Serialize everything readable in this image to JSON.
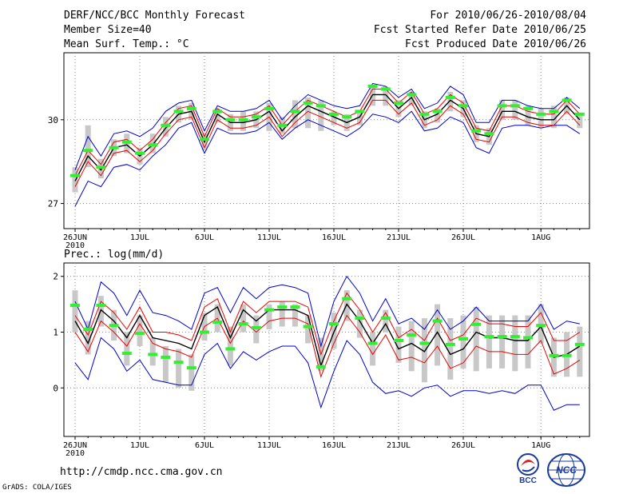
{
  "header": {
    "left": [
      "DERF/NCC/BCC Monthly Forecast",
      "Member Size=40",
      "Mean Surf. Temp.: °C"
    ],
    "right": [
      "For 2010/06/26-2010/08/04",
      "Fcst Started Refer Date 2010/06/25",
      "Fcst Produced Date 2010/06/26"
    ]
  },
  "footer": {
    "url": "http://cmdp.ncc.cma.gov.cn",
    "credit": "GrADS: COLA/IGES",
    "logo_bcc": "BCC",
    "logo_ncc": "NCC"
  },
  "colors": {
    "ensemble_mean": "#000000",
    "spread_inner": "#ee0000",
    "spread_outer": "#0000cc",
    "box": "#c8c8c8",
    "marker": "#33ee33",
    "grid": "#888888"
  },
  "chart_data": [
    {
      "type": "line",
      "title": "Mean Surf. Temp.: °C",
      "x_tick_labels": [
        "26JUN",
        "1JUL",
        "6JUL",
        "11JUL",
        "16JUL",
        "21JUL",
        "26JUL",
        "1AUG"
      ],
      "x_tick_days": [
        0,
        5,
        10,
        15,
        20,
        25,
        30,
        36
      ],
      "x_sublabel": "2010",
      "y_ticks": [
        27,
        30
      ],
      "ylim": [
        26.1,
        32.4
      ],
      "mean": [
        27.8,
        28.7,
        28.2,
        29.0,
        29.1,
        28.7,
        29.1,
        29.7,
        30.2,
        30.3,
        29.2,
        30.2,
        29.9,
        29.9,
        30.0,
        30.3,
        29.6,
        30.1,
        30.5,
        30.3,
        30.1,
        29.9,
        30.1,
        30.9,
        30.9,
        30.4,
        30.8,
        30.0,
        30.2,
        30.7,
        30.4,
        29.5,
        29.4,
        30.3,
        30.3,
        30.1,
        30.0,
        30.0,
        30.5,
        30.0
      ],
      "inner_low": [
        27.6,
        28.5,
        28.0,
        28.8,
        28.9,
        28.5,
        28.9,
        29.5,
        30.0,
        30.1,
        29.0,
        30.0,
        29.7,
        29.7,
        29.8,
        30.1,
        29.4,
        29.9,
        30.3,
        30.1,
        29.9,
        29.7,
        29.9,
        30.7,
        30.7,
        30.2,
        30.6,
        29.8,
        30.0,
        30.5,
        30.2,
        29.3,
        29.2,
        30.1,
        30.1,
        29.9,
        29.8,
        29.8,
        30.3,
        29.8
      ],
      "inner_high": [
        28.0,
        28.9,
        28.4,
        29.2,
        29.3,
        28.9,
        29.3,
        29.9,
        30.4,
        30.5,
        29.4,
        30.4,
        30.1,
        30.1,
        30.2,
        30.5,
        29.8,
        30.3,
        30.7,
        30.5,
        30.3,
        30.1,
        30.3,
        31.1,
        31.1,
        30.6,
        31.0,
        30.2,
        30.4,
        30.9,
        30.6,
        29.7,
        29.6,
        30.5,
        30.5,
        30.3,
        30.2,
        30.2,
        30.7,
        30.2
      ],
      "outer_low": [
        26.9,
        27.8,
        27.6,
        28.3,
        28.4,
        28.2,
        28.7,
        29.1,
        29.7,
        29.9,
        28.8,
        29.7,
        29.5,
        29.5,
        29.6,
        29.9,
        29.3,
        29.7,
        30.0,
        29.8,
        29.6,
        29.4,
        29.7,
        30.2,
        30.1,
        29.9,
        30.3,
        29.6,
        29.7,
        30.1,
        29.9,
        29.0,
        28.8,
        29.7,
        29.8,
        29.8,
        29.7,
        29.8,
        29.8,
        29.5
      ],
      "outer_high": [
        28.2,
        29.4,
        28.7,
        29.5,
        29.6,
        29.4,
        29.7,
        30.3,
        30.6,
        30.7,
        29.6,
        30.5,
        30.3,
        30.3,
        30.4,
        30.7,
        30.0,
        30.5,
        30.9,
        30.7,
        30.5,
        30.4,
        30.5,
        31.3,
        31.2,
        30.8,
        31.1,
        30.4,
        30.6,
        31.2,
        30.9,
        29.9,
        29.9,
        30.7,
        30.7,
        30.5,
        30.4,
        30.4,
        30.8,
        30.4
      ],
      "box_low": [
        27.4,
        28.3,
        27.9,
        28.7,
        28.8,
        28.4,
        28.8,
        29.4,
        29.9,
        30.0,
        28.9,
        29.9,
        29.6,
        29.6,
        29.7,
        29.6,
        29.5,
        29.7,
        29.7,
        29.6,
        29.8,
        29.6,
        29.8,
        30.5,
        30.5,
        30.1,
        30.5,
        29.7,
        29.9,
        30.3,
        30.1,
        29.2,
        29.1,
        30.0,
        30.0,
        29.8,
        29.7,
        29.7,
        30.2,
        29.7
      ],
      "box_high": [
        28.3,
        29.8,
        28.6,
        29.3,
        29.5,
        29.0,
        29.5,
        30.1,
        30.5,
        30.6,
        29.5,
        30.4,
        30.2,
        30.3,
        30.3,
        30.6,
        30.1,
        30.7,
        30.8,
        30.7,
        30.3,
        30.2,
        30.3,
        31.2,
        31.2,
        30.7,
        31.0,
        30.3,
        30.4,
        31.0,
        30.7,
        29.8,
        29.7,
        30.7,
        30.7,
        30.5,
        30.4,
        30.5,
        30.8,
        30.2
      ],
      "marker": [
        28.0,
        28.9,
        28.3,
        29.0,
        29.2,
        28.8,
        29.1,
        29.8,
        30.3,
        30.4,
        29.3,
        30.3,
        30.0,
        30.0,
        30.1,
        30.4,
        29.8,
        30.3,
        30.6,
        30.5,
        30.2,
        30.1,
        30.3,
        31.2,
        31.1,
        30.6,
        30.9,
        30.2,
        30.3,
        30.8,
        30.5,
        29.6,
        29.5,
        30.5,
        30.5,
        30.4,
        30.2,
        30.3,
        30.7,
        30.2
      ]
    },
    {
      "type": "line",
      "title": "Prec.: log(mm/d)",
      "x_tick_labels": [
        "26JUN",
        "1JUL",
        "6JUL",
        "11JUL",
        "16JUL",
        "21JUL",
        "26JUL",
        "1AUG"
      ],
      "x_tick_days": [
        0,
        5,
        10,
        15,
        20,
        25,
        30,
        36
      ],
      "x_sublabel": "2010",
      "y_ticks": [
        0,
        1,
        2
      ],
      "ylim": [
        -0.87,
        2.24
      ],
      "mean": [
        1.2,
        0.8,
        1.4,
        1.2,
        0.9,
        1.3,
        0.9,
        0.85,
        0.8,
        0.7,
        1.3,
        1.45,
        0.9,
        1.4,
        1.2,
        1.4,
        1.4,
        1.4,
        1.3,
        0.4,
        1.0,
        1.5,
        1.2,
        0.8,
        1.15,
        0.7,
        0.8,
        0.65,
        1.0,
        0.6,
        0.7,
        1.0,
        0.9,
        0.9,
        0.85,
        0.85,
        1.1,
        0.55,
        0.6,
        0.75
      ],
      "inner_low": [
        1.0,
        0.65,
        1.2,
        1.0,
        0.75,
        1.15,
        0.8,
        0.7,
        0.65,
        0.55,
        1.1,
        1.25,
        0.8,
        1.2,
        1.0,
        1.2,
        1.25,
        1.25,
        1.15,
        0.2,
        0.8,
        1.3,
        1.0,
        0.6,
        0.95,
        0.5,
        0.55,
        0.45,
        0.75,
        0.35,
        0.45,
        0.75,
        0.65,
        0.65,
        0.6,
        0.6,
        0.85,
        0.25,
        0.35,
        0.5
      ],
      "inner_high": [
        1.3,
        0.95,
        1.55,
        1.35,
        1.05,
        1.45,
        1.0,
        1.0,
        0.95,
        0.85,
        1.45,
        1.6,
        1.0,
        1.55,
        1.35,
        1.55,
        1.55,
        1.55,
        1.45,
        0.6,
        1.2,
        1.7,
        1.4,
        1.0,
        1.35,
        0.9,
        1.05,
        0.85,
        1.25,
        0.85,
        0.95,
        1.25,
        1.15,
        1.15,
        1.1,
        1.1,
        1.35,
        0.85,
        0.85,
        1.0
      ],
      "outer_low": [
        0.45,
        0.15,
        0.9,
        0.7,
        0.3,
        0.5,
        0.15,
        0.1,
        0.05,
        0.05,
        0.6,
        0.8,
        0.35,
        0.65,
        0.5,
        0.65,
        0.75,
        0.75,
        0.45,
        -0.35,
        0.3,
        0.85,
        0.6,
        0.1,
        -0.1,
        -0.05,
        -0.15,
        0.0,
        0.05,
        -0.15,
        -0.05,
        -0.05,
        -0.1,
        -0.05,
        -0.1,
        0.05,
        0.05,
        -0.4,
        -0.3,
        -0.3
      ],
      "outer_high": [
        1.55,
        1.05,
        1.9,
        1.7,
        1.3,
        1.75,
        1.35,
        1.3,
        1.2,
        1.05,
        1.7,
        1.8,
        1.35,
        1.8,
        1.6,
        1.8,
        1.85,
        1.8,
        1.7,
        0.75,
        1.55,
        2.0,
        1.7,
        1.2,
        1.6,
        1.15,
        1.25,
        1.05,
        1.4,
        1.05,
        1.2,
        1.45,
        1.2,
        1.2,
        1.2,
        1.2,
        1.5,
        1.05,
        1.2,
        1.15
      ],
      "box_low": [
        1.0,
        0.6,
        1.1,
        0.85,
        0.4,
        0.75,
        0.4,
        0.1,
        0.0,
        -0.05,
        0.85,
        1.0,
        0.4,
        1.0,
        0.8,
        1.05,
        1.1,
        1.1,
        0.8,
        0.3,
        0.7,
        1.2,
        0.9,
        0.4,
        1.0,
        0.45,
        0.3,
        0.1,
        0.4,
        0.15,
        0.35,
        0.3,
        0.35,
        0.35,
        0.3,
        0.35,
        0.8,
        0.2,
        0.2,
        0.2
      ],
      "box_high": [
        1.75,
        1.2,
        1.65,
        1.4,
        1.0,
        1.3,
        0.9,
        0.75,
        0.7,
        0.6,
        1.35,
        1.5,
        1.1,
        1.5,
        1.3,
        1.5,
        1.55,
        1.5,
        1.3,
        0.9,
        1.35,
        1.75,
        1.4,
        1.0,
        1.4,
        1.1,
        1.2,
        1.25,
        1.5,
        1.25,
        1.3,
        1.45,
        1.3,
        1.3,
        1.3,
        1.3,
        1.5,
        0.9,
        1.0,
        1.1
      ],
      "marker": [
        1.48,
        1.05,
        1.48,
        1.12,
        0.62,
        0.98,
        0.6,
        0.55,
        0.46,
        0.36,
        1.0,
        1.18,
        0.7,
        1.15,
        1.08,
        1.4,
        1.45,
        1.45,
        1.1,
        0.38,
        1.15,
        1.6,
        1.25,
        0.8,
        1.25,
        0.85,
        0.95,
        0.8,
        1.2,
        0.78,
        0.88,
        1.14,
        0.92,
        0.92,
        0.92,
        0.9,
        1.12,
        0.58,
        0.58,
        0.78
      ]
    }
  ]
}
